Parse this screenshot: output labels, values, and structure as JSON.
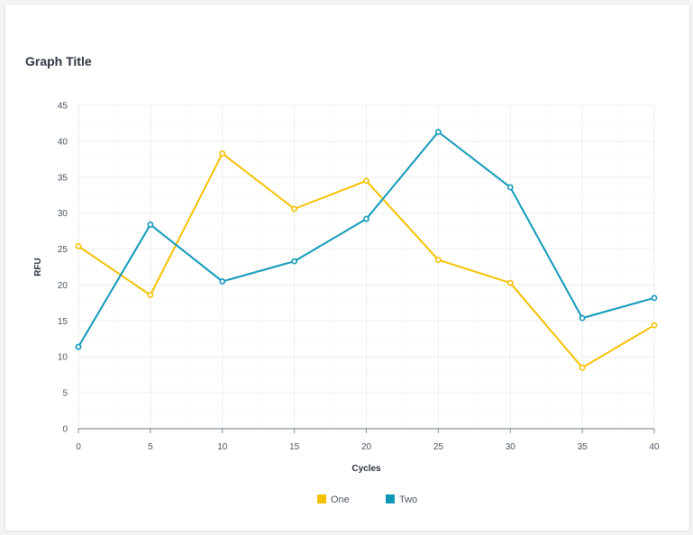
{
  "chart_data": {
    "type": "line",
    "title": "Graph Title",
    "xlabel": "Cycles",
    "ylabel": "RFU",
    "x": [
      0,
      5,
      10,
      15,
      20,
      25,
      30,
      35,
      40
    ],
    "xlim": [
      0,
      40
    ],
    "ylim": [
      0,
      45
    ],
    "x_ticks": [
      0,
      5,
      10,
      15,
      20,
      25,
      30,
      35,
      40
    ],
    "y_ticks": [
      0,
      5,
      10,
      15,
      20,
      25,
      30,
      35,
      40,
      45
    ],
    "grid": true,
    "legend_position": "bottom-center",
    "series": [
      {
        "name": "One",
        "color": "#f5c000",
        "values": [
          25.4,
          18.6,
          38.3,
          30.6,
          34.5,
          23.5,
          20.3,
          8.5,
          14.4
        ]
      },
      {
        "name": "Two",
        "color": "#0e98b8",
        "values": [
          11.4,
          28.4,
          20.5,
          23.3,
          29.2,
          41.3,
          33.6,
          15.4,
          18.2
        ]
      }
    ]
  }
}
